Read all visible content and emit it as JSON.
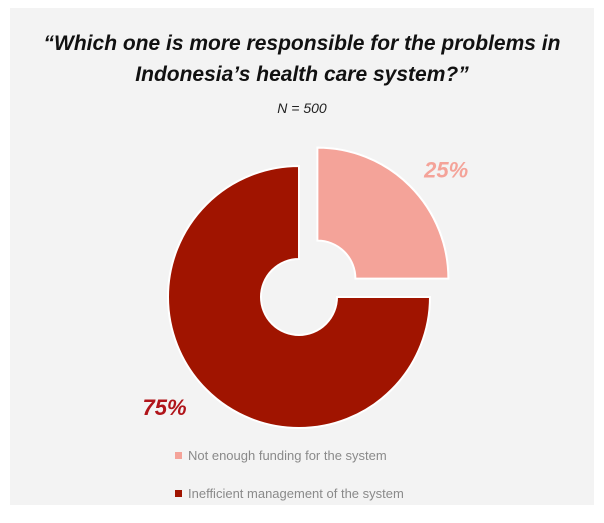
{
  "chart_data": {
    "type": "pie",
    "title": "“Which one is more responsible for the problems in Indonesia’s health care system?”",
    "subtitle": "N = 500",
    "slices": [
      {
        "label": "Not enough funding for the system",
        "value": 25,
        "display": "25%",
        "color": "#f4a399",
        "exploded": true
      },
      {
        "label": "Inefficient management of the system",
        "value": 75,
        "display": "75%",
        "color": "#a01400",
        "exploded": false
      }
    ],
    "legend_placement": "bottom",
    "donut": true
  }
}
